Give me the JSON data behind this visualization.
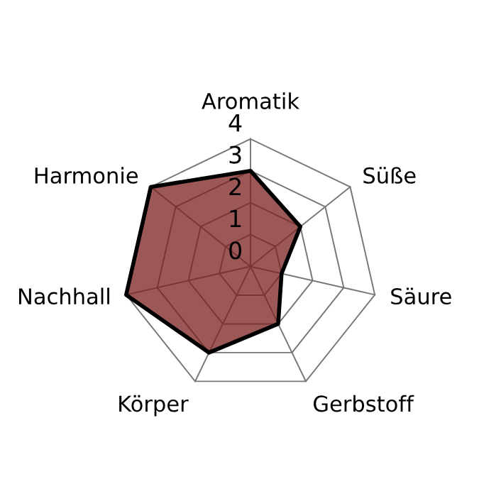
{
  "chart_data": {
    "type": "radar",
    "categories": [
      "Aromatik",
      "Süße",
      "Säure",
      "Gerbstoff",
      "Körper",
      "Nachhall",
      "Harmonie"
    ],
    "series": [
      {
        "color": "#7b1f1f",
        "values": [
          3,
          2,
          1,
          2,
          3,
          4,
          4
        ]
      }
    ],
    "ylim": [
      0,
      4
    ],
    "yticks": [
      0,
      1,
      2,
      3,
      4
    ],
    "grid": true
  }
}
